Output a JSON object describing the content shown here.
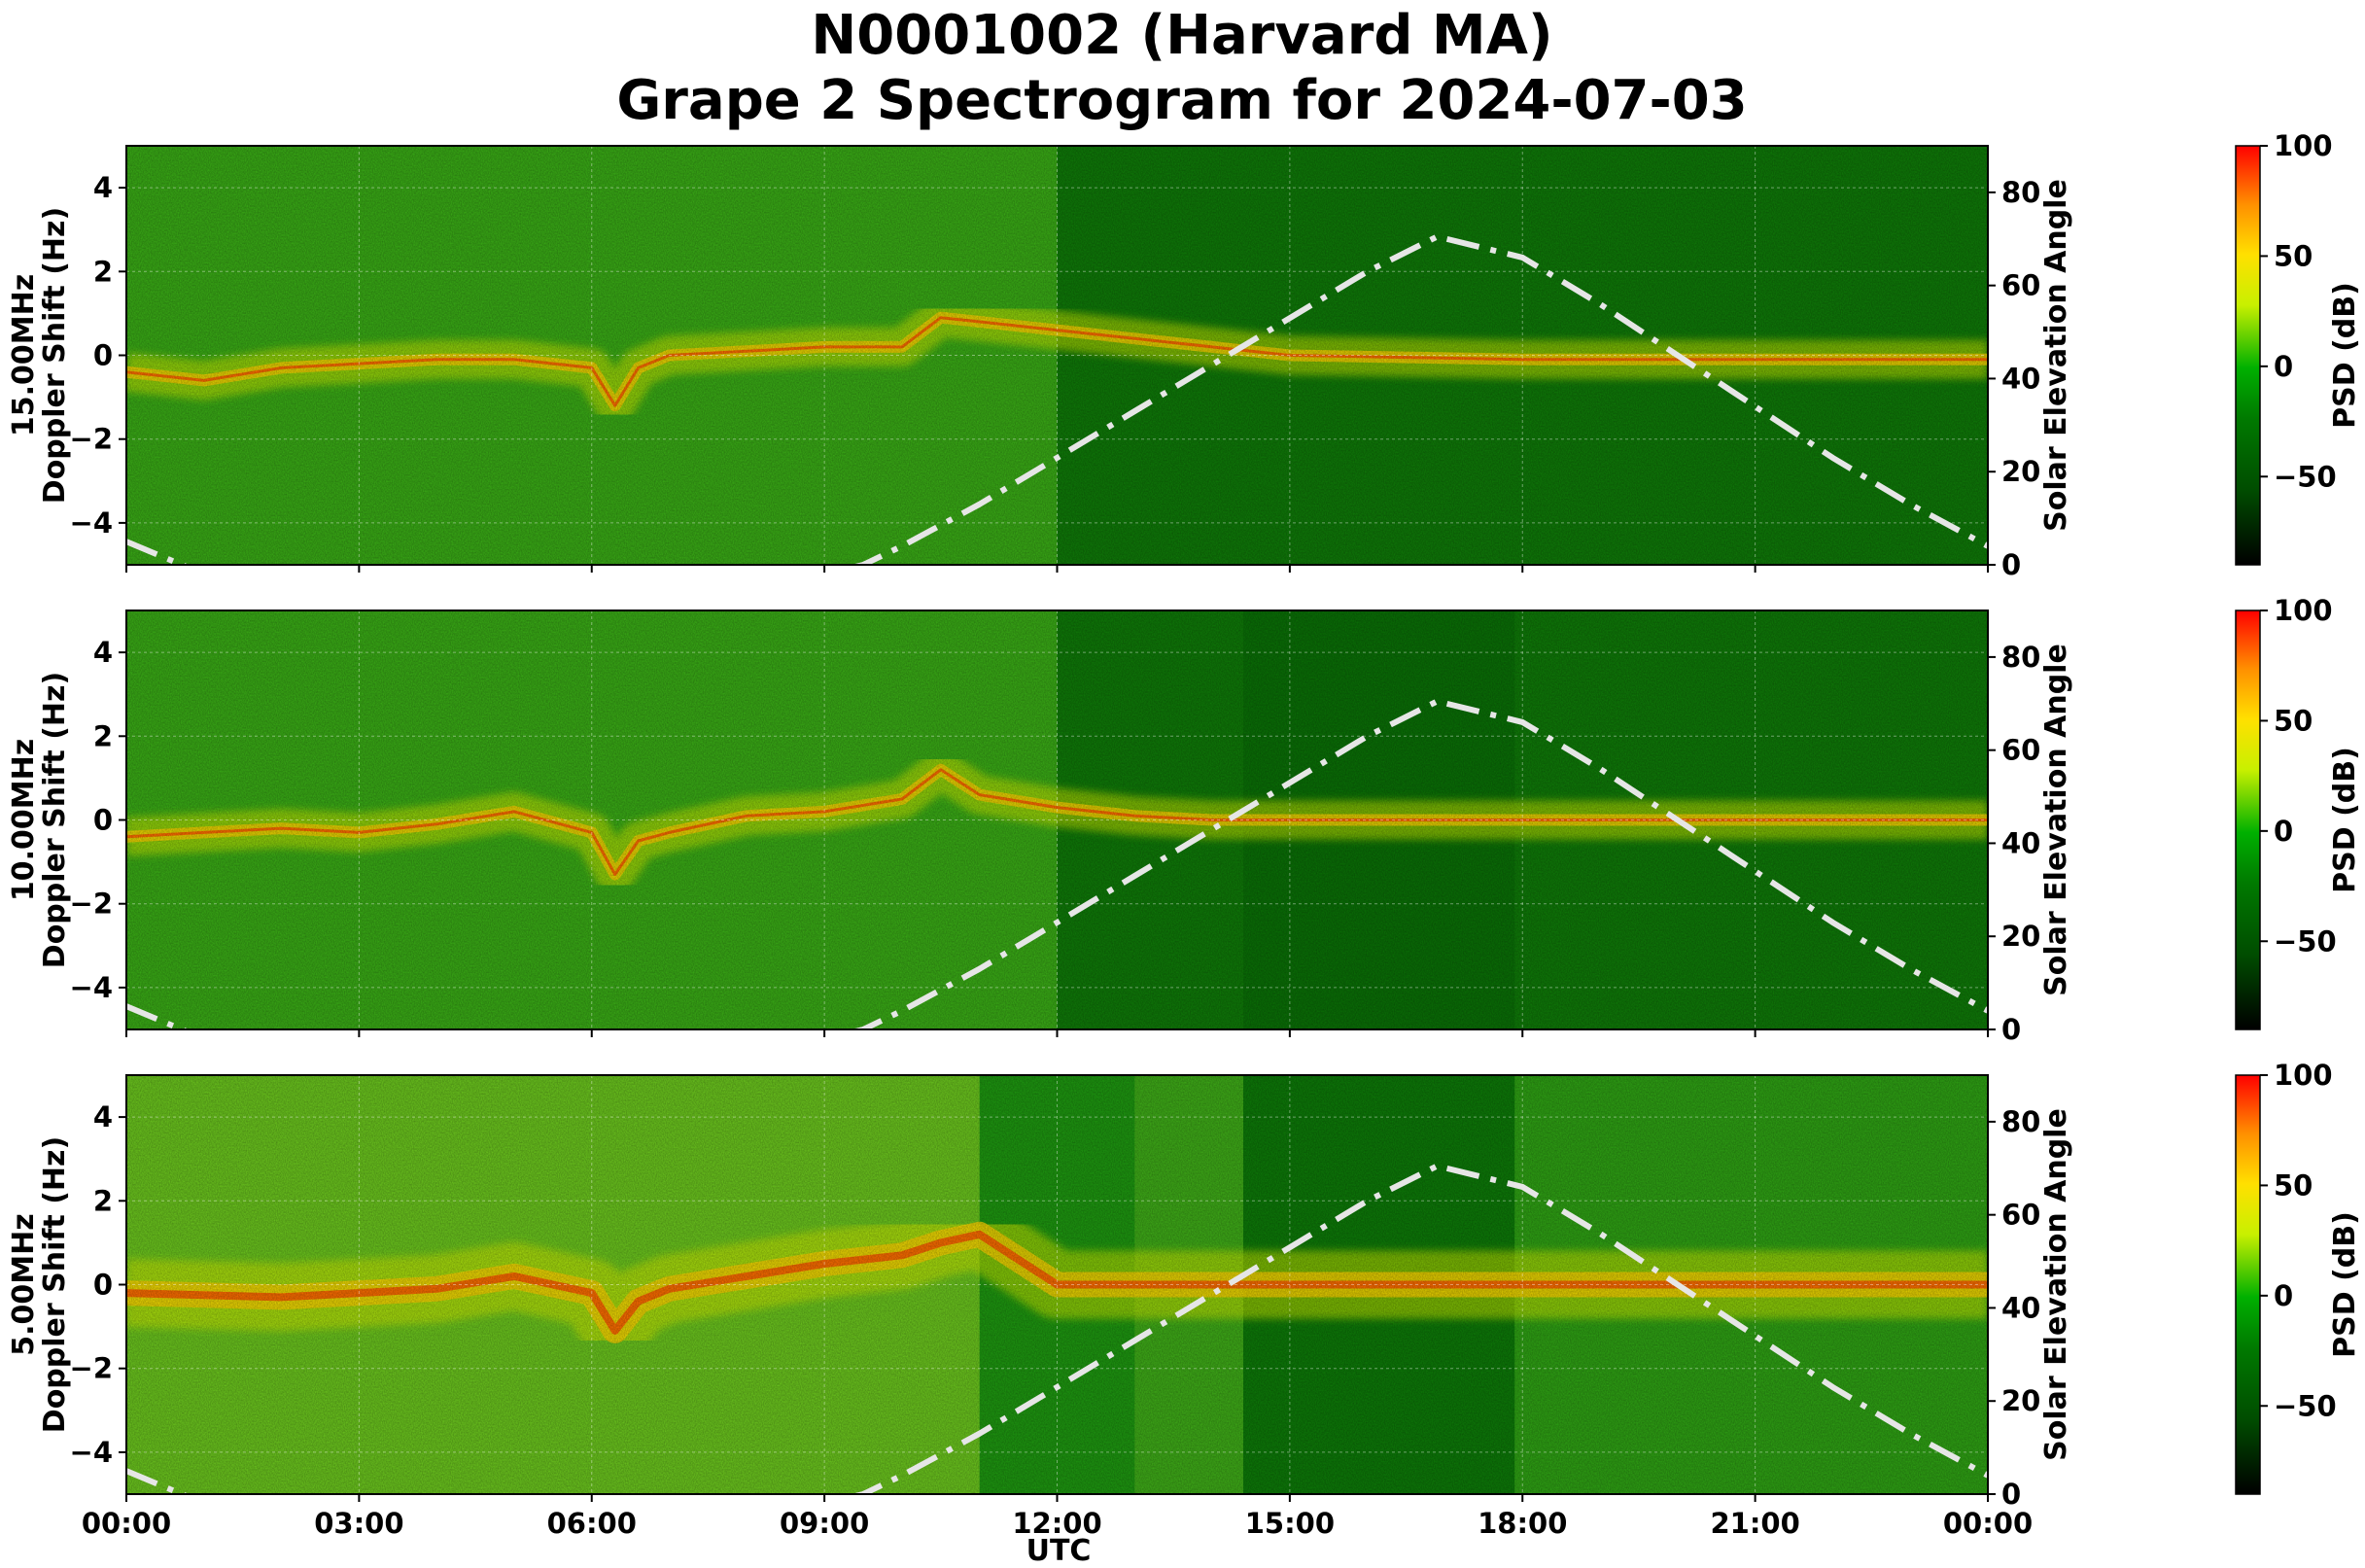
{
  "chart_data": {
    "type": "heatmap",
    "title": [
      "N0001002 (Harvard MA)",
      "Grape 2 Spectrogram for 2024-07-03"
    ],
    "xlabel": "UTC",
    "x_ticks": [
      "00:00",
      "03:00",
      "06:00",
      "09:00",
      "12:00",
      "15:00",
      "18:00",
      "21:00",
      "00:00"
    ],
    "xlim_hours": [
      0,
      24
    ],
    "ylim": [
      -5,
      5
    ],
    "y_ticks": [
      4,
      2,
      0,
      -2,
      -4
    ],
    "y2label": "Solar Elevation Angle",
    "y2lim": [
      0,
      90
    ],
    "y2_ticks": [
      80,
      60,
      40,
      20,
      0
    ],
    "colorbar": {
      "label": "PSD (dB)",
      "range": [
        -90,
        100
      ],
      "ticks": [
        "100",
        "50",
        "0",
        "−50"
      ],
      "tick_values": [
        100,
        50,
        0,
        -50
      ],
      "colors": [
        "#000000",
        "#006400",
        "#00a000",
        "#ffff00",
        "#ff8c00",
        "#ff0000"
      ]
    },
    "solar_curve": {
      "hours": [
        0,
        1,
        2,
        3,
        4,
        5,
        6,
        7,
        8,
        9,
        9.5,
        10,
        11,
        12,
        13,
        14,
        15,
        16,
        16.9,
        18,
        19,
        20,
        21,
        22,
        23,
        24
      ],
      "elevation": [
        5,
        -2,
        -8,
        -12,
        -14,
        -13,
        -10,
        -6,
        -1,
        -2,
        0,
        4,
        13,
        23,
        33,
        43,
        53,
        63,
        70.5,
        66,
        56,
        45,
        34,
        23,
        13,
        4
      ]
    },
    "panels": [
      {
        "name": "15MHz",
        "ylabel": [
          "15.00MHz",
          "Doppler Shift (Hz)"
        ],
        "baseline": [
          [
            0,
            -0.4
          ],
          [
            1,
            -0.6
          ],
          [
            2,
            -0.3
          ],
          [
            3,
            -0.2
          ],
          [
            4,
            -0.1
          ],
          [
            5,
            -0.1
          ],
          [
            6,
            -0.3
          ],
          [
            6.3,
            -1.2
          ],
          [
            6.6,
            -0.3
          ],
          [
            7,
            0
          ],
          [
            8,
            0.1
          ],
          [
            9,
            0.2
          ],
          [
            10,
            0.2
          ],
          [
            10.5,
            0.9
          ],
          [
            11,
            0.8
          ],
          [
            12,
            0.6
          ],
          [
            13,
            0.4
          ],
          [
            14,
            0.2
          ],
          [
            15,
            0
          ],
          [
            18,
            -0.1
          ],
          [
            24,
            -0.1
          ]
        ]
      },
      {
        "name": "10MHz",
        "ylabel": [
          "10.00MHz",
          "Doppler Shift (Hz)"
        ],
        "baseline": [
          [
            0,
            -0.4
          ],
          [
            1,
            -0.3
          ],
          [
            2,
            -0.2
          ],
          [
            3,
            -0.3
          ],
          [
            4,
            -0.1
          ],
          [
            5,
            0.2
          ],
          [
            6,
            -0.3
          ],
          [
            6.3,
            -1.3
          ],
          [
            6.6,
            -0.5
          ],
          [
            7,
            -0.3
          ],
          [
            8,
            0.1
          ],
          [
            9,
            0.2
          ],
          [
            10,
            0.5
          ],
          [
            10.5,
            1.2
          ],
          [
            11,
            0.6
          ],
          [
            12,
            0.3
          ],
          [
            13,
            0.1
          ],
          [
            14,
            0
          ],
          [
            24,
            0
          ]
        ]
      },
      {
        "name": "5MHz",
        "ylabel": [
          "5.00MHz",
          "Doppler Shift (Hz)"
        ],
        "baseline": [
          [
            0,
            -0.2
          ],
          [
            2,
            -0.3
          ],
          [
            3,
            -0.2
          ],
          [
            4,
            -0.1
          ],
          [
            5,
            0.2
          ],
          [
            6,
            -0.2
          ],
          [
            6.3,
            -1.1
          ],
          [
            6.6,
            -0.4
          ],
          [
            7,
            -0.1
          ],
          [
            8,
            0.2
          ],
          [
            9,
            0.5
          ],
          [
            10,
            0.7
          ],
          [
            10.5,
            1.0
          ],
          [
            11,
            1.2
          ],
          [
            12,
            0
          ],
          [
            24,
            0
          ]
        ]
      }
    ]
  }
}
